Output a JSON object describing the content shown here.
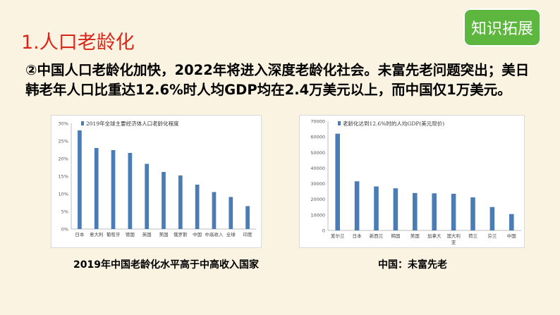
{
  "slide": {
    "title": "1.人口老龄化",
    "badge": "知识拓展",
    "paragraph_line1": "②中国人口老龄化加快，2022年将进入深度老龄化社会。未富先老问题突出；美日",
    "paragraph_line2": "韩老年人口比重达12.6%时人均GDP均在2.4万美元以上，而中国仅1万美元。",
    "caption_left": "2019年中国老龄化水平高于中高收入国家",
    "caption_right": "中国：未富先老"
  },
  "colors": {
    "title_red": "#d8261a",
    "badge_green": "#5db63e",
    "bar_blue": "#4a7cb5",
    "background": "#fbf3e1"
  },
  "chart_data": [
    {
      "type": "bar",
      "title": "2019年全球主要经济体人口老龄化程度",
      "categories": [
        "日本",
        "意大利",
        "葡萄牙",
        "德国",
        "英国",
        "美国",
        "俄罗斯",
        "中国",
        "中高收入",
        "全球",
        "印度"
      ],
      "values": [
        28.0,
        23.0,
        22.4,
        21.6,
        18.5,
        16.2,
        15.2,
        12.6,
        10.5,
        9.1,
        6.5
      ],
      "yticks": [
        "0%",
        "5%",
        "10%",
        "15%",
        "20%",
        "25%",
        "30%"
      ],
      "ylim": [
        0,
        30
      ],
      "legend_marker": true
    },
    {
      "type": "bar",
      "title": "老龄化达到12.6%时的人均GDP(美元现价)",
      "categories": [
        "爱尔兰",
        "日本",
        "新西兰",
        "韩国",
        "美国",
        "加拿大",
        "澳大利亚",
        "荷兰",
        "芬兰",
        "中国"
      ],
      "values": [
        62000,
        31500,
        28200,
        27000,
        24000,
        23800,
        23500,
        21200,
        15000,
        10500
      ],
      "yticks": [
        "0",
        "10000",
        "20000",
        "30000",
        "40000",
        "50000",
        "60000",
        "70000"
      ],
      "ylim": [
        0,
        70000
      ],
      "legend_marker": true
    }
  ]
}
